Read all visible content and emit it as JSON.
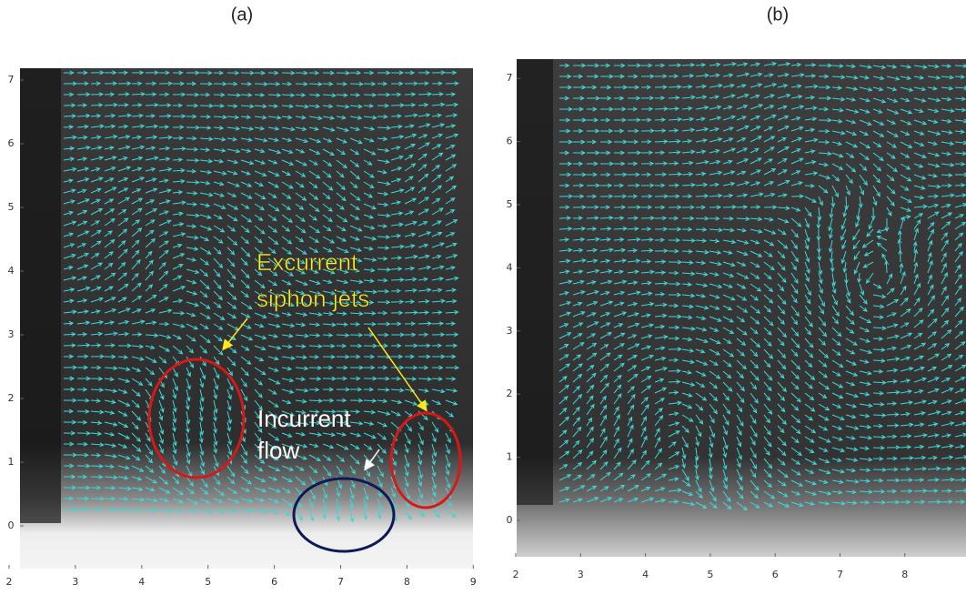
{
  "panels": [
    {
      "label": "(a)",
      "xticks": [
        2,
        3,
        4,
        5,
        6,
        7,
        8,
        9
      ],
      "yticks": [
        0,
        1,
        2,
        3,
        4,
        5,
        6,
        7
      ],
      "annotations": {
        "excurrent": [
          "Excurrent",
          "siphon jets"
        ],
        "incurrent": [
          "Incurrent",
          "flow"
        ]
      }
    },
    {
      "label": "(b)",
      "xticks": [
        2,
        3,
        4,
        5,
        6,
        7,
        8
      ],
      "yticks": [
        0,
        1,
        2,
        3,
        4,
        5,
        6,
        7
      ]
    }
  ]
}
